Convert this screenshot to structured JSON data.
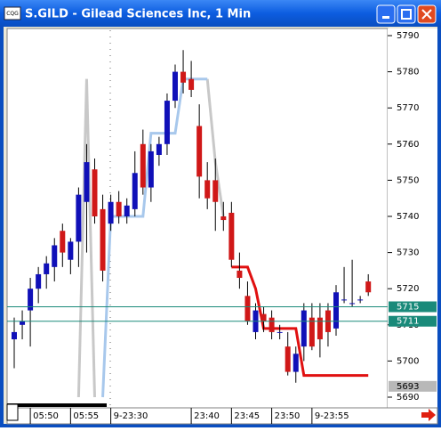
{
  "window": {
    "app_icon": "CQG",
    "title": "S.GILD - Gilead Sciences Inc, 1 Min"
  },
  "chart_data": {
    "type": "candlestick",
    "categories": [
      null,
      null,
      "05:50",
      null,
      null,
      null,
      null,
      "05:55",
      null,
      null,
      null,
      null,
      "9-23:30",
      null,
      null,
      null,
      null,
      null,
      null,
      null,
      null,
      null,
      "23:40",
      null,
      null,
      null,
      null,
      "23:45",
      null,
      null,
      null,
      null,
      "23:50",
      null,
      null,
      null,
      null,
      "9-23:55",
      null,
      null,
      null,
      null,
      null,
      null,
      null
    ],
    "open": [
      5706,
      5710,
      5714,
      5720,
      5724,
      5726,
      5736,
      5728,
      5733,
      5744,
      5753,
      5742,
      5738,
      5744,
      5740,
      5742,
      5760,
      5748,
      5757,
      5760,
      5772,
      5780,
      5778,
      5765,
      5750,
      5750,
      5740,
      5741,
      5725,
      5718,
      5708,
      5713,
      5712,
      5708,
      5704,
      5697,
      5704,
      5712,
      5712,
      5714,
      5709,
      5717,
      5716,
      5717,
      5722
    ],
    "high": [
      5712,
      5714,
      5723,
      5726,
      5729,
      5734,
      5738,
      5734,
      5748,
      5760,
      5756,
      5746,
      5746,
      5747,
      5745,
      5758,
      5764,
      5760,
      5762,
      5774,
      5782,
      5786,
      5783,
      5771,
      5755,
      5756,
      5744,
      5744,
      5730,
      5722,
      5716,
      5715,
      5714,
      5710,
      5708,
      5704,
      5716,
      5716,
      5716,
      5716,
      5721,
      5726,
      5728,
      5718,
      5724
    ],
    "low": [
      5698,
      5706,
      5704,
      5716,
      5720,
      5722,
      5726,
      5724,
      5726,
      5730,
      5738,
      5722,
      5736,
      5738,
      5738,
      5740,
      5746,
      5744,
      5754,
      5757,
      5770,
      5774,
      5773,
      5745,
      5742,
      5736,
      5736,
      5726,
      5720,
      5710,
      5706,
      5708,
      5706,
      5706,
      5696,
      5694,
      5700,
      5703,
      5701,
      5704,
      5707,
      5716,
      5715,
      5716,
      5718
    ],
    "close": [
      5708,
      5711,
      5720,
      5724,
      5727,
      5732,
      5730,
      5733,
      5746,
      5755,
      5740,
      5725,
      5744,
      5740,
      5743,
      5752,
      5748,
      5758,
      5760,
      5772,
      5780,
      5777,
      5775,
      5751,
      5745,
      5744,
      5739,
      5728,
      5723,
      5711,
      5714,
      5711,
      5708,
      5708,
      5697,
      5702,
      5714,
      5704,
      5706,
      5708,
      5719,
      5717,
      5716,
      5717,
      5719
    ],
    "up_color": "#1010b8",
    "down_color": "#d01818",
    "series": [
      {
        "color": "#c8c8c8",
        "values": [
          null,
          null,
          null,
          null,
          null,
          null,
          null,
          null,
          5690,
          5778,
          5690,
          null,
          null,
          null,
          null,
          null,
          null,
          null,
          null,
          null,
          null,
          null,
          null,
          null,
          5778,
          5755,
          5740,
          null,
          null,
          null,
          null,
          null,
          null,
          null,
          null,
          null,
          null,
          null,
          null,
          null,
          null,
          null,
          null,
          null,
          null
        ]
      },
      {
        "color": "#a8c8ec",
        "values": [
          null,
          null,
          null,
          null,
          null,
          null,
          null,
          null,
          null,
          null,
          null,
          5690,
          5740,
          5740,
          5740,
          5740,
          5740,
          5763,
          5763,
          5763,
          5763,
          5778,
          5778,
          5778,
          5778,
          null,
          null,
          null,
          null,
          null,
          null,
          null,
          null,
          null,
          null,
          null,
          null,
          null,
          null,
          null,
          null,
          null,
          null,
          null,
          null
        ]
      },
      {
        "color": "#e01010",
        "values": [
          null,
          null,
          null,
          null,
          null,
          null,
          null,
          null,
          null,
          null,
          null,
          null,
          null,
          null,
          null,
          null,
          null,
          null,
          null,
          null,
          null,
          null,
          null,
          null,
          null,
          null,
          null,
          5726,
          5726,
          5726,
          5720,
          5709,
          5709,
          5709,
          5709,
          5709,
          5696,
          5696,
          5696,
          5696,
          5696,
          5696,
          5696,
          5696,
          5696
        ]
      }
    ],
    "ylim": [
      5690,
      5790
    ],
    "yticks": [
      5690,
      5700,
      5710,
      5720,
      5730,
      5740,
      5750,
      5760,
      5770,
      5780,
      5790
    ],
    "price_markers": [
      5715,
      5711,
      5693
    ],
    "marker_colors": [
      "#1a8a7a",
      "#1a8a7a",
      "#b8b8b8"
    ]
  }
}
